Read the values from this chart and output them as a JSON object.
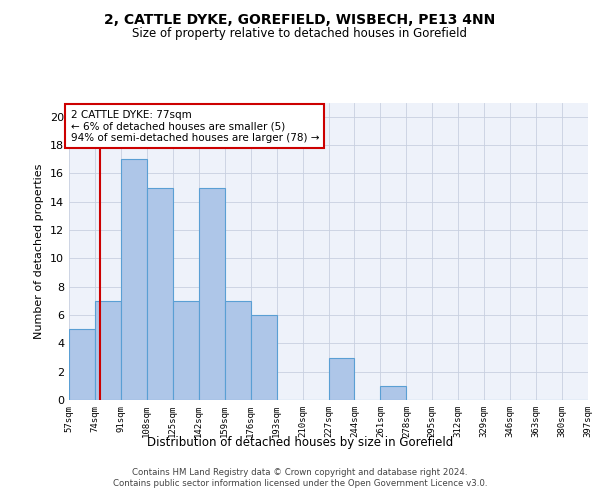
{
  "title1": "2, CATTLE DYKE, GOREFIELD, WISBECH, PE13 4NN",
  "title2": "Size of property relative to detached houses in Gorefield",
  "xlabel": "Distribution of detached houses by size in Gorefield",
  "ylabel": "Number of detached properties",
  "bar_edges": [
    57,
    74,
    91,
    108,
    125,
    142,
    159,
    176,
    193,
    210,
    227,
    244,
    261,
    278,
    295,
    312,
    329,
    346,
    363,
    380,
    397
  ],
  "bar_values": [
    5,
    7,
    17,
    15,
    7,
    15,
    7,
    6,
    0,
    0,
    3,
    0,
    1,
    0,
    0,
    0,
    0,
    0,
    0,
    0
  ],
  "bar_color": "#aec6e8",
  "bar_edge_color": "#5a9fd4",
  "property_line_x": 77,
  "property_line_color": "#cc0000",
  "annotation_line1": "2 CATTLE DYKE: 77sqm",
  "annotation_line2": "← 6% of detached houses are smaller (5)",
  "annotation_line3": "94% of semi-detached houses are larger (78) →",
  "annotation_box_color": "#cc0000",
  "ylim": [
    0,
    21
  ],
  "yticks": [
    0,
    2,
    4,
    6,
    8,
    10,
    12,
    14,
    16,
    18,
    20
  ],
  "tick_labels": [
    "57sqm",
    "74sqm",
    "91sqm",
    "108sqm",
    "125sqm",
    "142sqm",
    "159sqm",
    "176sqm",
    "193sqm",
    "210sqm",
    "227sqm",
    "244sqm",
    "261sqm",
    "278sqm",
    "295sqm",
    "312sqm",
    "329sqm",
    "346sqm",
    "363sqm",
    "380sqm",
    "397sqm"
  ],
  "footer_text": "Contains HM Land Registry data © Crown copyright and database right 2024.\nContains public sector information licensed under the Open Government Licence v3.0.",
  "bg_color": "#eef2fa",
  "grid_color": "#c8d0e0"
}
